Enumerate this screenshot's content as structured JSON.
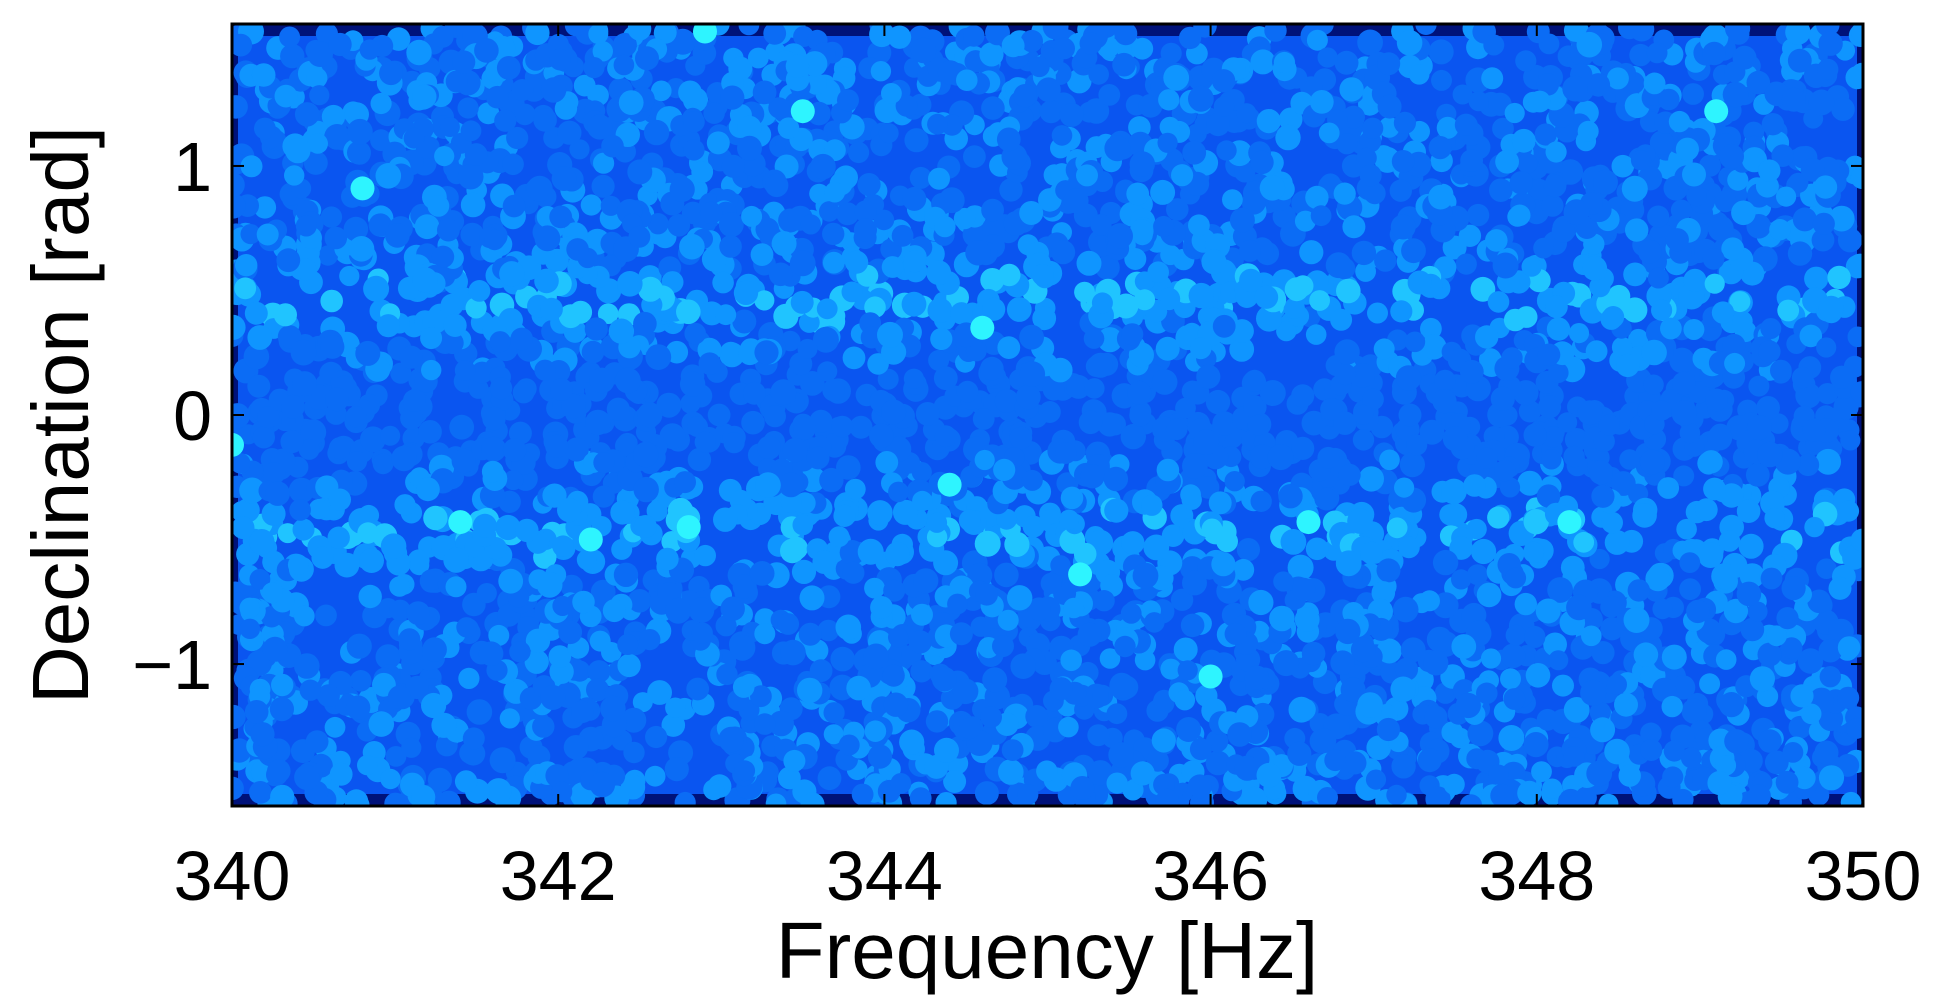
{
  "chart_data": {
    "type": "scatter",
    "title": "",
    "xlabel": "Frequency [Hz]",
    "ylabel": "Declination [rad]",
    "xlim": [
      340,
      350
    ],
    "ylim": [
      -1.57,
      1.57
    ],
    "x_ticks": [
      340,
      342,
      344,
      346,
      348,
      350
    ],
    "x_tick_labels": [
      "340",
      "342",
      "344",
      "346",
      "348",
      "350"
    ],
    "y_ticks": [
      1,
      0,
      -1
    ],
    "y_tick_labels": [
      "1",
      "0",
      "−1"
    ],
    "grid": false,
    "legend": "none",
    "colors": {
      "background": "#00127a",
      "field": "#0a55f0",
      "dot_low": "#0b6cf5",
      "dot_mid": "#0f95ff",
      "dot_high": "#20c4ff",
      "dot_peak": "#2ef4ff"
    },
    "highlight_points": [
      {
        "x": 340.0,
        "y": -0.12
      },
      {
        "x": 340.8,
        "y": 0.91
      },
      {
        "x": 342.9,
        "y": 1.54
      },
      {
        "x": 343.5,
        "y": 1.22
      },
      {
        "x": 349.1,
        "y": 1.22
      },
      {
        "x": 344.6,
        "y": 0.35
      },
      {
        "x": 344.4,
        "y": -0.28
      },
      {
        "x": 345.2,
        "y": -0.64
      },
      {
        "x": 346.0,
        "y": -1.05
      },
      {
        "x": 342.8,
        "y": -0.45
      },
      {
        "x": 341.4,
        "y": -0.43
      },
      {
        "x": 348.2,
        "y": -0.43
      },
      {
        "x": 342.2,
        "y": -0.5
      },
      {
        "x": 346.6,
        "y": -0.43
      }
    ]
  }
}
